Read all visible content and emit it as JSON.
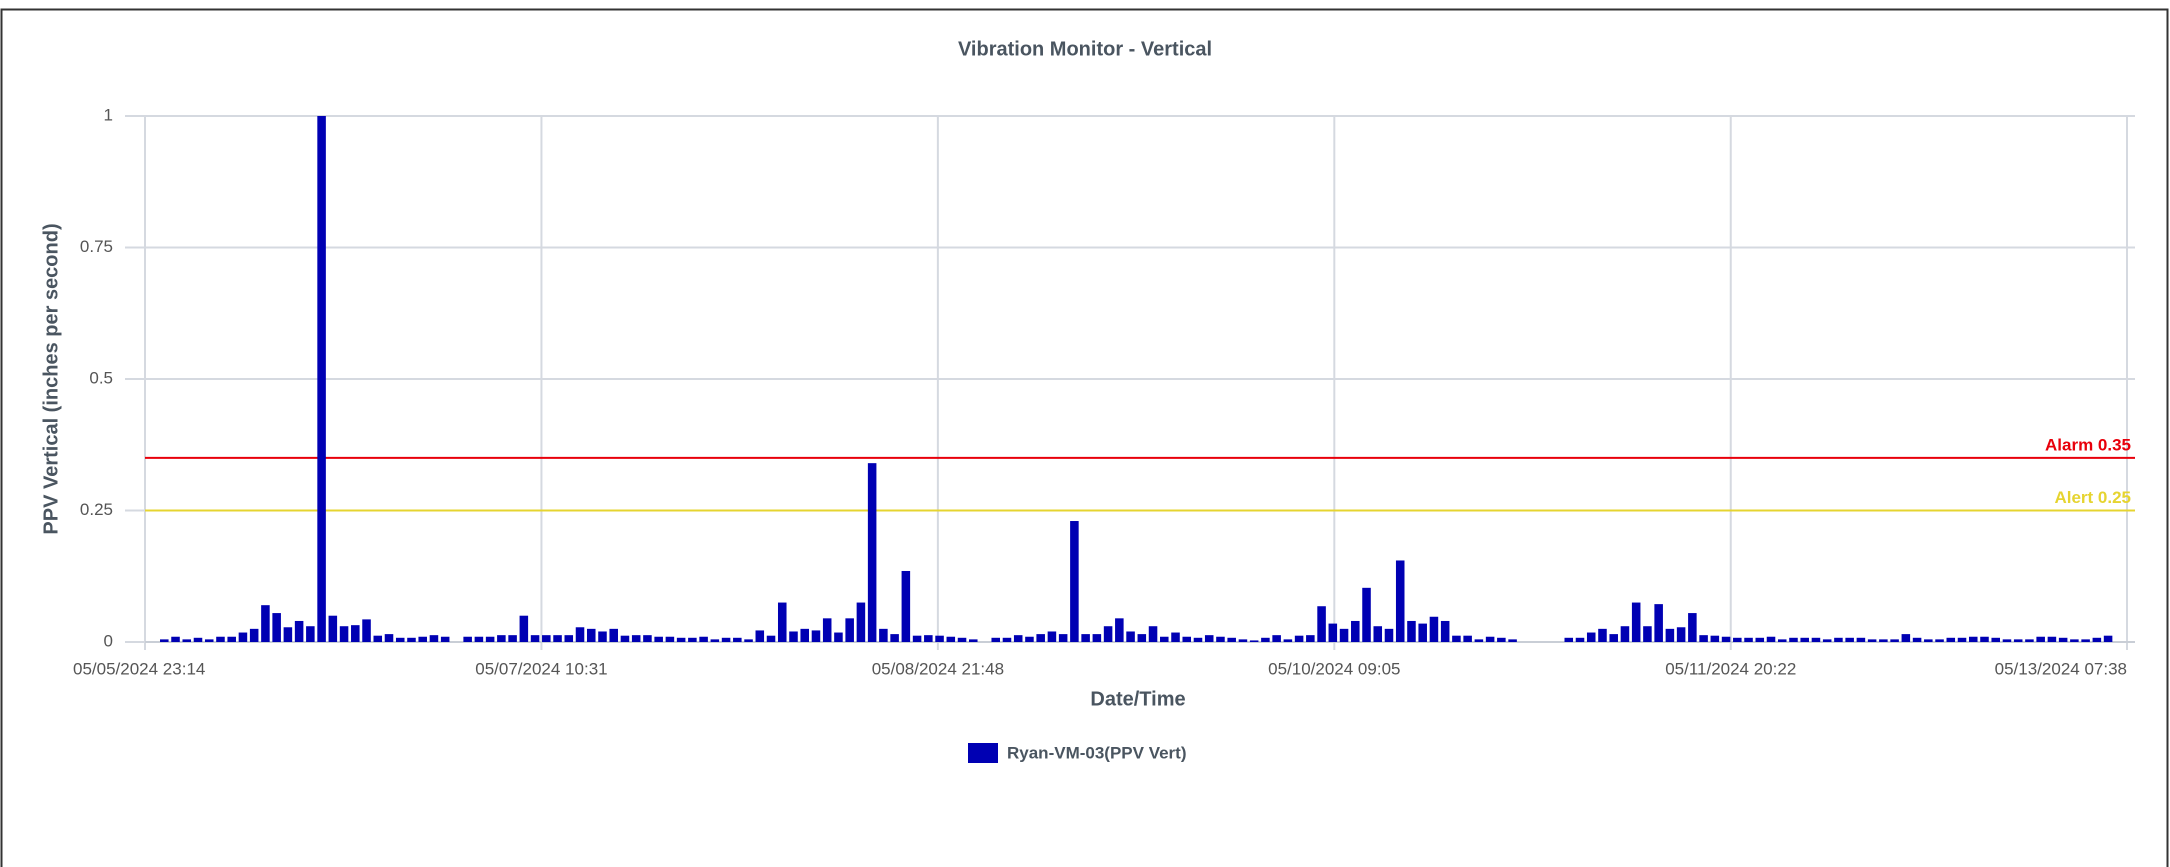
{
  "chart_data": {
    "type": "bar",
    "title": "Vibration Monitor - Vertical",
    "xlabel": "Date/Time",
    "ylabel": "PPV Vertical (inches per second)",
    "xlim": [
      "05/05/2024 23:14",
      "05/13/2024 07:38"
    ],
    "xticks": [
      "05/05/2024 23:14",
      "05/07/2024 10:31",
      "05/08/2024 21:48",
      "05/10/2024 09:05",
      "05/11/2024 20:22",
      "05/13/2024 07:38"
    ],
    "ylim": [
      0,
      1
    ],
    "yticks": [
      0,
      0.25,
      0.5,
      0.75,
      1
    ],
    "grid": true,
    "legend": "bottom",
    "thresholds": [
      {
        "label": "Alarm 0.35",
        "value": 0.35,
        "color": "#e8000b"
      },
      {
        "label": "Alert 0.25",
        "value": 0.25,
        "color": "#e6d430"
      }
    ],
    "x": [
      "05/06/2024 00:57",
      "05/06/2024 01:57",
      "05/06/2024 02:57",
      "05/06/2024 03:57",
      "05/06/2024 04:57",
      "05/06/2024 05:57",
      "05/06/2024 06:57",
      "05/06/2024 07:57",
      "05/06/2024 08:57",
      "05/06/2024 09:57",
      "05/06/2024 10:57",
      "05/06/2024 11:57",
      "05/06/2024 12:57",
      "05/06/2024 13:57",
      "05/06/2024 14:57",
      "05/06/2024 15:57",
      "05/06/2024 16:57",
      "05/06/2024 17:57",
      "05/06/2024 18:57",
      "05/06/2024 19:57",
      "05/06/2024 20:57",
      "05/06/2024 21:57",
      "05/06/2024 22:57",
      "05/06/2024 23:57",
      "05/07/2024 00:57",
      "05/07/2024 01:57",
      "05/07/2024 02:57",
      "05/07/2024 03:57",
      "05/07/2024 04:57",
      "05/07/2024 05:57",
      "05/07/2024 06:57",
      "05/07/2024 07:57",
      "05/07/2024 08:57",
      "05/07/2024 09:57",
      "05/07/2024 10:57",
      "05/07/2024 11:57",
      "05/07/2024 12:57",
      "05/07/2024 13:57",
      "05/07/2024 14:57",
      "05/07/2024 15:57",
      "05/07/2024 16:57",
      "05/07/2024 17:57",
      "05/07/2024 18:57",
      "05/07/2024 19:57",
      "05/07/2024 20:57",
      "05/07/2024 21:57",
      "05/07/2024 22:57",
      "05/07/2024 23:57",
      "05/08/2024 00:57",
      "05/08/2024 01:57",
      "05/08/2024 02:57",
      "05/08/2024 03:57",
      "05/08/2024 04:57",
      "05/08/2024 05:57",
      "05/08/2024 06:57",
      "05/08/2024 07:57",
      "05/08/2024 08:57",
      "05/08/2024 09:57",
      "05/08/2024 10:57",
      "05/08/2024 11:57",
      "05/08/2024 12:57",
      "05/08/2024 13:57",
      "05/08/2024 14:57",
      "05/08/2024 15:57",
      "05/08/2024 16:57",
      "05/08/2024 17:57",
      "05/08/2024 18:57",
      "05/08/2024 19:57",
      "05/08/2024 20:57",
      "05/08/2024 21:57",
      "05/08/2024 22:57",
      "05/08/2024 23:57",
      "05/09/2024 00:57",
      "05/09/2024 01:57",
      "05/09/2024 02:57",
      "05/09/2024 03:57",
      "05/09/2024 04:57",
      "05/09/2024 05:57",
      "05/09/2024 06:57",
      "05/09/2024 07:57",
      "05/09/2024 08:57",
      "05/09/2024 09:57",
      "05/09/2024 10:57",
      "05/09/2024 11:57",
      "05/09/2024 12:57",
      "05/09/2024 13:57",
      "05/09/2024 14:57",
      "05/09/2024 15:57",
      "05/09/2024 16:57",
      "05/09/2024 17:57",
      "05/09/2024 18:57",
      "05/09/2024 19:57",
      "05/09/2024 20:57",
      "05/09/2024 21:57",
      "05/09/2024 22:57",
      "05/09/2024 23:57",
      "05/10/2024 00:57",
      "05/10/2024 01:57",
      "05/10/2024 02:57",
      "05/10/2024 03:57",
      "05/10/2024 04:57",
      "05/10/2024 05:57",
      "05/10/2024 06:57",
      "05/10/2024 07:57",
      "05/10/2024 08:57",
      "05/10/2024 09:57",
      "05/10/2024 10:57",
      "05/10/2024 11:57",
      "05/10/2024 12:57",
      "05/10/2024 13:57",
      "05/10/2024 14:57",
      "05/10/2024 15:57",
      "05/10/2024 16:57",
      "05/10/2024 17:57",
      "05/10/2024 18:57",
      "05/10/2024 19:57",
      "05/10/2024 20:57",
      "05/10/2024 21:57",
      "05/10/2024 22:57",
      "05/10/2024 23:57",
      "05/11/2024 00:57",
      "05/11/2024 01:57",
      "05/11/2024 02:57",
      "05/11/2024 03:57",
      "05/11/2024 04:57",
      "05/11/2024 05:57",
      "05/11/2024 06:57",
      "05/11/2024 07:57",
      "05/11/2024 08:57",
      "05/11/2024 09:57",
      "05/11/2024 10:57",
      "05/11/2024 11:57",
      "05/11/2024 12:57",
      "05/11/2024 13:57",
      "05/11/2024 14:57",
      "05/11/2024 15:57",
      "05/11/2024 16:57",
      "05/11/2024 17:57",
      "05/11/2024 18:57",
      "05/11/2024 19:57",
      "05/11/2024 20:57",
      "05/11/2024 21:57",
      "05/11/2024 22:57",
      "05/11/2024 23:57",
      "05/12/2024 00:57",
      "05/12/2024 01:57",
      "05/12/2024 02:57",
      "05/12/2024 03:57",
      "05/12/2024 04:57",
      "05/12/2024 05:57",
      "05/12/2024 06:57",
      "05/12/2024 07:57",
      "05/12/2024 08:57",
      "05/12/2024 09:57",
      "05/12/2024 10:57",
      "05/12/2024 11:57",
      "05/12/2024 12:57",
      "05/12/2024 13:57",
      "05/12/2024 14:57",
      "05/12/2024 15:57",
      "05/12/2024 16:57",
      "05/12/2024 17:57",
      "05/12/2024 18:57",
      "05/12/2024 19:57",
      "05/12/2024 20:57",
      "05/12/2024 21:57",
      "05/12/2024 22:57",
      "05/12/2024 23:57",
      "05/13/2024 00:57",
      "05/13/2024 01:57",
      "05/13/2024 02:57",
      "05/13/2024 03:57",
      "05/13/2024 04:57",
      "05/13/2024 05:57"
    ],
    "series": [
      {
        "name": "Ryan-VM-03(PPV Vert)",
        "color": "#0000b3",
        "values": [
          0.005,
          0.01,
          0.005,
          0.008,
          0.005,
          0.01,
          0.01,
          0.018,
          0.025,
          0.07,
          0.055,
          0.028,
          0.04,
          0.03,
          1.0,
          0.05,
          0.03,
          0.032,
          0.043,
          0.012,
          0.015,
          0.008,
          0.008,
          0.01,
          0.013,
          0.01,
          null,
          0.01,
          0.01,
          0.01,
          0.013,
          0.013,
          0.05,
          0.013,
          0.013,
          0.013,
          0.013,
          0.028,
          0.025,
          0.02,
          0.025,
          0.012,
          0.013,
          0.013,
          0.01,
          0.01,
          0.008,
          0.008,
          0.01,
          0.005,
          0.008,
          0.008,
          0.005,
          0.022,
          0.012,
          0.075,
          0.02,
          0.025,
          0.022,
          0.045,
          0.018,
          0.045,
          0.075,
          0.34,
          0.025,
          0.015,
          0.135,
          0.012,
          0.013,
          0.012,
          0.01,
          0.008,
          0.005,
          null,
          0.008,
          0.008,
          0.013,
          0.01,
          0.015,
          0.02,
          0.015,
          0.23,
          0.015,
          0.015,
          0.03,
          0.045,
          0.02,
          0.015,
          0.03,
          0.01,
          0.018,
          0.01,
          0.008,
          0.013,
          0.01,
          0.008,
          0.005,
          0.003,
          0.008,
          0.013,
          0.005,
          0.012,
          0.013,
          0.068,
          0.035,
          0.025,
          0.04,
          0.103,
          0.03,
          0.025,
          0.155,
          0.04,
          0.035,
          0.048,
          0.04,
          0.012,
          0.012,
          0.005,
          0.01,
          0.008,
          0.005,
          null,
          null,
          null,
          null,
          0.008,
          0.008,
          0.018,
          0.025,
          0.015,
          0.03,
          0.075,
          0.03,
          0.072,
          0.025,
          0.028,
          0.055,
          0.013,
          0.012,
          0.01,
          0.008,
          0.008,
          0.008,
          0.01,
          0.005,
          0.008,
          0.008,
          0.008,
          0.005,
          0.008,
          0.008,
          0.008,
          0.005,
          0.005,
          0.005,
          0.015,
          0.008,
          0.005,
          0.005,
          0.008,
          0.008,
          0.01,
          0.01,
          0.008,
          0.005,
          0.005,
          0.005,
          0.01,
          0.01,
          0.008,
          0.005,
          0.005,
          0.008,
          0.012
        ]
      }
    ]
  }
}
